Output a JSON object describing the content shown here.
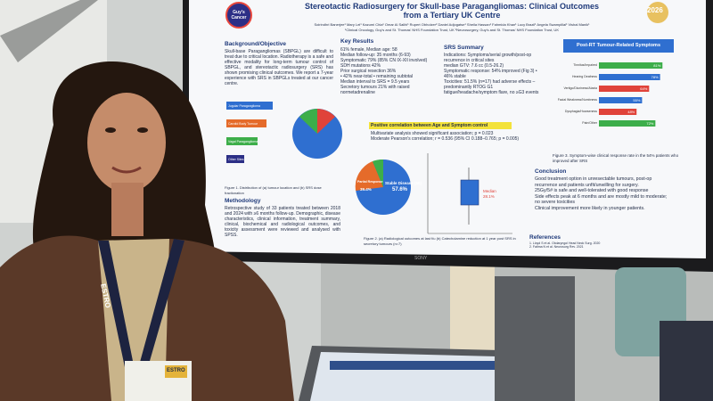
{
  "poster": {
    "title": "Stereotactic Radiosurgery for Skull-base Paragangliomas: Clinical Outcomes",
    "subtitle": "from a Tertiary UK Centre",
    "logo": "Guy's Cancer",
    "authors": "Soirindhri Banerjee¹ Mary Lei¹ Kazumi Chia¹ Omar Al Salihi¹ Rupert Obholzer² Daniel Adjogatse¹ Sheila Hassan¹ Fahmida Khan¹ Lucy Brazil¹ Angela Swampillai¹ Vishal Manik¹",
    "affiliations": "¹Clinical Oncology, Guy's and St. Thomas' NHS Foundation Trust, UK  ²Neurosurgery, Guy's and St. Thomas' NHS Foundation Trust, UK",
    "background": {
      "heading": "Background/Objective",
      "text": "Skull-base Paragangliomas (SBPGL) are difficult to treat due to critical location. Radiotherapy is a safe and effective modality for long-term tumour control of SBPGL, and stereotactic radiosurgery (SRS) has shown promising clinical outcomes. We report a 7-year experience with SRS in SBPGLs treated at our cancer centre."
    },
    "location_labels": [
      "Jugular Paraganglioma",
      "Carotid Body Tumour",
      "Vagal Paraganglioma",
      "Other Sites"
    ],
    "figure1_caption": "Figure 1. Distribution of (a) tumour location and (b) SRS dose fractionation",
    "methodology": {
      "heading": "Methodology",
      "text": "Retrospective study of 33 patients treated between 2018 and 2024 with ≥6 months follow-up. Demographic, disease characteristics, clinical information, treatment summary, clinical, biochemical and radiological outcomes, and toxicity assessment were reviewed and analysed with SPSS."
    },
    "key_results": {
      "heading": "Key Results",
      "lines": [
        "61% female, Median age: 58",
        "Median follow-up: 35 months (6-93)",
        "Symptomatic 79% (85% CN IX-XII involved)",
        "SDH mutations 42%",
        "Prior surgical resection 36%",
        "• 42% near-total • remaining subtotal",
        "Median interval to SRS = 9.5 years",
        "Secretory tumours 21% with raised normetadrenaline"
      ]
    },
    "srs_summary": {
      "heading": "SRS Summary",
      "lines": [
        "Indications: Symptoms/serial growth/post-op recurrence in critical sites",
        "median GTV: 7.6 cc (0.5-26.2)",
        "Symptomatic response: 54% improved (Fig 3) • 46% stable",
        "Toxicities: 51.5% (n=17) had adverse effects – predominantly RTOG G1 fatigue/headache/symptom flare, no ≥G3 events"
      ]
    },
    "correlation": {
      "highlight": "Positive correlation between Age and Symptom control",
      "lines": [
        "Multivariate analysis showed significant association; p = 0.023",
        "Moderate Pearson's correlation; r = 0.536 (95% CI 0.188–0.765; p = 0.005)"
      ]
    },
    "pie_labels": [
      "Stable Disease (50)",
      "57.6%",
      "Partial Response",
      "39.4%"
    ],
    "box_labels": [
      "Median",
      "28.1%"
    ],
    "figure2_caption": "Figure 2. (a) Radiological outcomes at last f/u (b) Catecholamine reduction at 1 year post SRS in secretory tumours (n=7)",
    "symptom_chart": {
      "title": "Post-RT Tumour-Related Symptoms",
      "categories": [
        "Tinnitus/Impaired",
        "Hearing Deafness",
        "Vertigo/Dizziness/Ataxia",
        "Facial Weakness/Numbness",
        "Dysphagia/Hoarseness",
        "Pain/Other"
      ],
      "values": [
        81,
        78,
        64,
        55,
        48,
        72
      ],
      "value_labels": [
        "81%",
        "78%",
        "64%",
        "55%",
        "48%",
        "72%"
      ],
      "colors": [
        "#3dae4a",
        "#2f6fd0",
        "#e0433a",
        "#2f6fd0",
        "#e0433a",
        "#3dae4a"
      ],
      "xlim": [
        0,
        100
      ]
    },
    "figure3_caption": "Figure 3. Symptom-wise clinical response rate in the 54% patients who improved after SRS",
    "conclusion": {
      "heading": "Conclusion",
      "lines": [
        "Good treatment option in unresectable tumours, post-op recurrence and patients unfit/unwilling for surgery.",
        "25Gy/5# is safe and well-tolerated with good response",
        "Side effects peak at 6 months and are mostly mild to moderate; no severe toxicities",
        "Clinical improvement more likely in younger patients."
      ]
    },
    "references": {
      "heading": "References",
      "lines": [
        "1. Lloyd S et al. Otolaryngol Head Neck Surg. 2020",
        "2. Fatima N et al. Neurosurg Rev. 2021"
      ]
    },
    "congress": "2026"
  },
  "scene": {
    "monitor_brand": "SONY",
    "lanyard": "ESTRO",
    "badge": "ESTRO"
  }
}
